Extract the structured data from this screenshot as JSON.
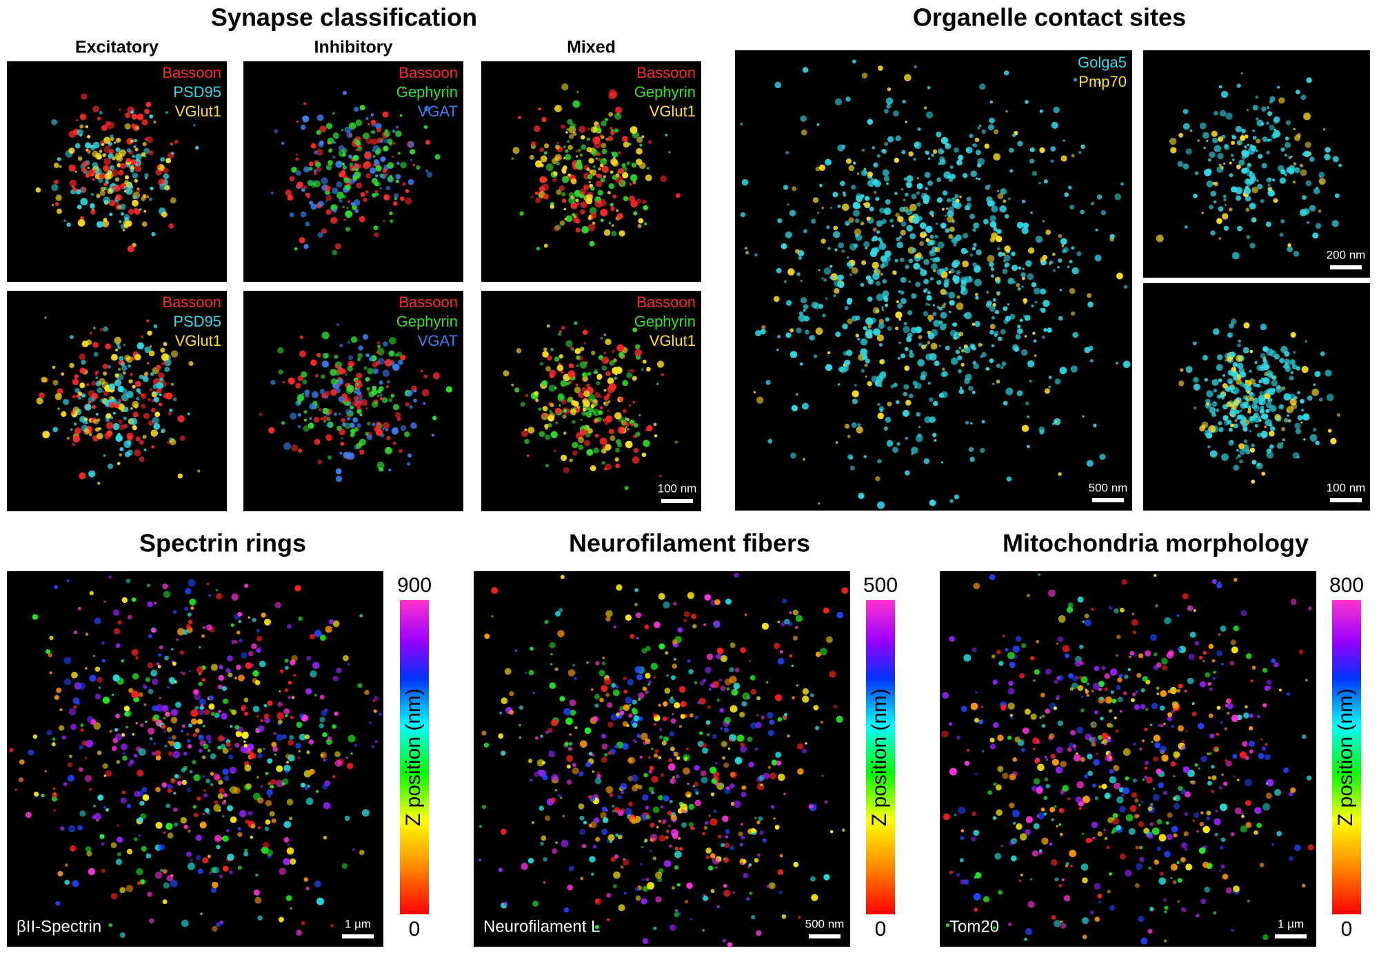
{
  "synapse_classification": {
    "title": "Synapse classification",
    "columns": [
      "Excitatory",
      "Inhibitory",
      "Mixed"
    ],
    "panels": [
      {
        "channels": [
          {
            "name": "Bassoon",
            "color": "#ff2a2a"
          },
          {
            "name": "PSD95",
            "color": "#2fd8e6"
          },
          {
            "name": "VGlut1",
            "color": "#ffe020"
          }
        ]
      },
      {
        "channels": [
          {
            "name": "Bassoon",
            "color": "#ff2a2a"
          },
          {
            "name": "Gephyrin",
            "color": "#2fe02f"
          },
          {
            "name": "VGAT",
            "color": "#3a7ff0"
          }
        ]
      },
      {
        "channels": [
          {
            "name": "Bassoon",
            "color": "#ff2a2a"
          },
          {
            "name": "Gephyrin",
            "color": "#2fe02f"
          },
          {
            "name": "VGlut1",
            "color": "#ffe020"
          }
        ]
      },
      {
        "channels": [
          {
            "name": "Bassoon",
            "color": "#ff2a2a"
          },
          {
            "name": "PSD95",
            "color": "#2fd8e6"
          },
          {
            "name": "VGlut1",
            "color": "#ffe020"
          }
        ]
      },
      {
        "channels": [
          {
            "name": "Bassoon",
            "color": "#ff2a2a"
          },
          {
            "name": "Gephyrin",
            "color": "#2fe02f"
          },
          {
            "name": "VGAT",
            "color": "#3a7ff0"
          }
        ]
      },
      {
        "channels": [
          {
            "name": "Bassoon",
            "color": "#ff2a2a"
          },
          {
            "name": "Gephyrin",
            "color": "#2fe02f"
          },
          {
            "name": "VGlut1",
            "color": "#ffe020"
          }
        ],
        "scale_bar": "100 nm"
      }
    ]
  },
  "organelle_contact_sites": {
    "title": "Organelle contact sites",
    "channels": [
      {
        "name": "Golga5",
        "color": "#2fd8e6"
      },
      {
        "name": "Pmp70",
        "color": "#ffe020"
      }
    ],
    "scale_bars": [
      "500 nm",
      "200 nm",
      "100 nm"
    ]
  },
  "z_panels": [
    {
      "title": "Spectrin rings",
      "label": "βII-Spectrin",
      "scale_bar": "1 µm",
      "colorbar": {
        "max": 900,
        "min": 0,
        "label": "Z position (nm)"
      }
    },
    {
      "title": "Neurofilament fibers",
      "label": "Neurofilament L",
      "scale_bar": "500 nm",
      "colorbar": {
        "max": 500,
        "min": 0,
        "label": "Z position (nm)"
      }
    },
    {
      "title": "Mitochondria morphology",
      "label": "Tom20",
      "scale_bar": "1 µm",
      "colorbar": {
        "max": 800,
        "min": 0,
        "label": "Z position (nm)"
      }
    }
  ]
}
